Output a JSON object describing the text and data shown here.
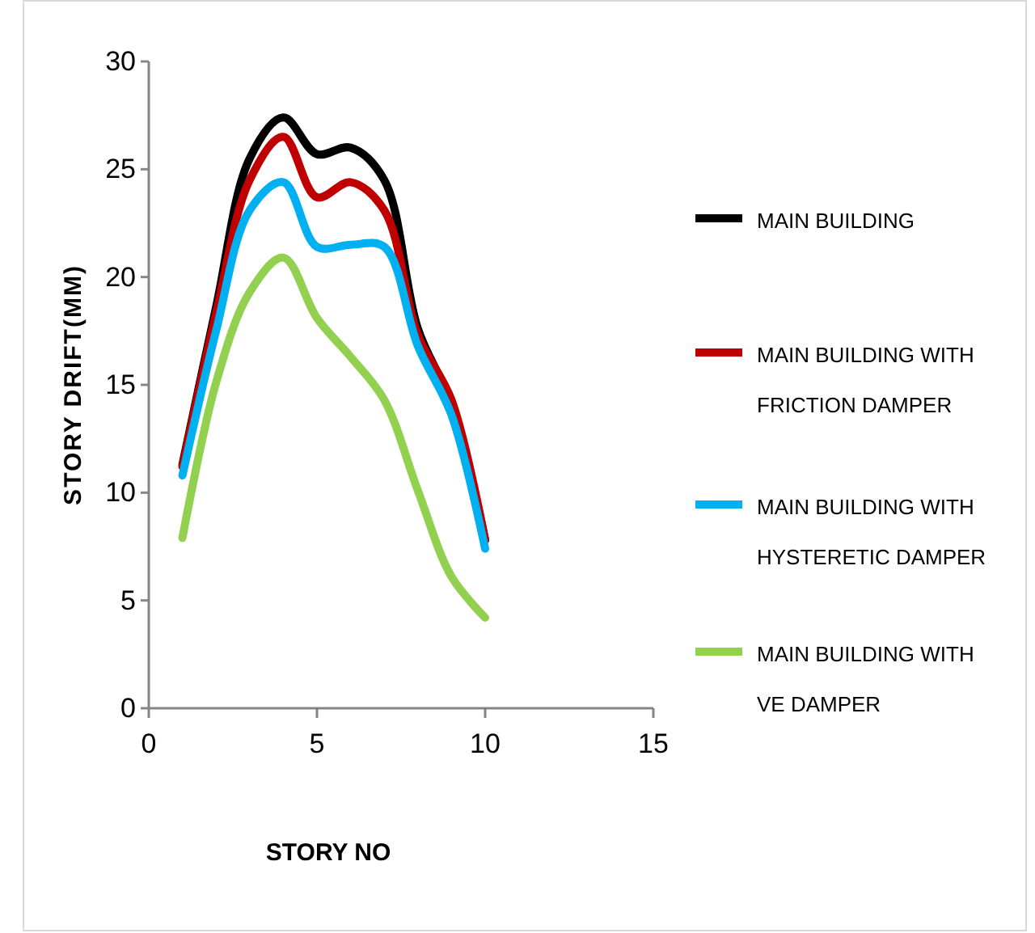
{
  "chart_data": {
    "type": "line",
    "xlabel": "STORY NO",
    "ylabel": "STORY DRIFT(MM)",
    "x": [
      1,
      2,
      3,
      4,
      5,
      6,
      7,
      8,
      9,
      10
    ],
    "xlim": [
      0,
      15
    ],
    "xticks": [
      0,
      5,
      10,
      15
    ],
    "ylim": [
      0,
      30
    ],
    "yticks": [
      0,
      5,
      10,
      15,
      20,
      25,
      30
    ],
    "grid": false,
    "legend": "right",
    "marker": "none",
    "line_style": "solid",
    "series": [
      {
        "name": "MAIN BUILDING",
        "color": "#000000",
        "values": [
          11.3,
          18.6,
          25.5,
          27.4,
          25.7,
          26.0,
          24.5,
          17.6,
          14.1,
          7.8
        ]
      },
      {
        "name": "MAIN BUILDING WITH FRICTION DAMPER",
        "color": "#c00000",
        "values": [
          11.2,
          18.3,
          24.5,
          26.5,
          23.7,
          24.4,
          23.1,
          17.3,
          14.3,
          7.8
        ]
      },
      {
        "name": "MAIN BUILDING WITH HYSTERETIC DAMPER",
        "color": "#00b0f0",
        "values": [
          10.8,
          17.5,
          23.1,
          24.4,
          21.4,
          21.5,
          21.4,
          16.8,
          13.6,
          7.4
        ]
      },
      {
        "name": "MAIN BUILDING WITH VE DAMPER",
        "color": "#92d050",
        "values": [
          7.9,
          15.1,
          19.3,
          20.9,
          18.1,
          16.3,
          14.3,
          10.1,
          6.1,
          4.2
        ]
      }
    ]
  }
}
